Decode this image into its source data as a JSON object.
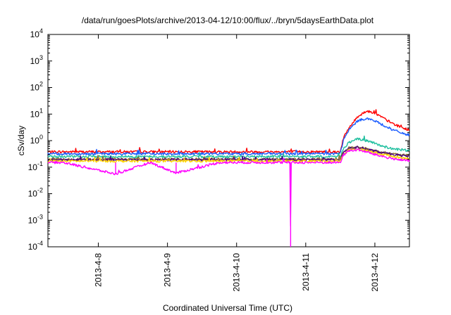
{
  "chart_data": {
    "type": "line",
    "title": "/data/run/goesPlots/archive/2013-04-12/10:00/flux/../bryn/5daysEarthData.plot",
    "xlabel": "Coordinated Universal Time (UTC)",
    "ylabel": "cSv/day",
    "yscale": "log",
    "ylim": [
      0.0001,
      10000
    ],
    "xlim": [
      "2013-04-07 06:30",
      "2013-04-12 12:00"
    ],
    "x_ticks": [
      "2013-4-8",
      "2013-4-9",
      "2013-4-10",
      "2013-4-11",
      "2013-4-12"
    ],
    "y_ticks": [
      {
        "value": 0.0001,
        "base": "10",
        "exp": "-4"
      },
      {
        "value": 0.001,
        "base": "10",
        "exp": "-3"
      },
      {
        "value": 0.01,
        "base": "10",
        "exp": "-2"
      },
      {
        "value": 0.1,
        "base": "10",
        "exp": "-1"
      },
      {
        "value": 1,
        "base": "10",
        "exp": "0"
      },
      {
        "value": 10,
        "base": "10",
        "exp": "1"
      },
      {
        "value": 100,
        "base": "10",
        "exp": "2"
      },
      {
        "value": 1000,
        "base": "10",
        "exp": "3"
      },
      {
        "value": 10000,
        "base": "10",
        "exp": "4"
      }
    ],
    "grid": false,
    "legend": "none",
    "series": [
      {
        "color": "#ff0000",
        "x": [
          "2013-04-07 06:30",
          "2013-04-08 12:00",
          "2013-04-09 12:00",
          "2013-04-10 12:00",
          "2013-04-11 06:00",
          "2013-04-11 12:00",
          "2013-04-11 13:00",
          "2013-04-11 15:00",
          "2013-04-11 18:00",
          "2013-04-11 21:00",
          "2013-04-12 00:00",
          "2013-04-12 03:00",
          "2013-04-12 06:00",
          "2013-04-12 09:00",
          "2013-04-12 12:00"
        ],
        "y": [
          0.38,
          0.38,
          0.38,
          0.38,
          0.38,
          0.38,
          1.2,
          3,
          8,
          13,
          11,
          7,
          4.5,
          3.2,
          2.5
        ]
      },
      {
        "color": "#1a5cff",
        "x": [
          "2013-04-07 06:30",
          "2013-04-08 12:00",
          "2013-04-09 12:00",
          "2013-04-10 12:00",
          "2013-04-11 06:00",
          "2013-04-11 12:00",
          "2013-04-11 13:00",
          "2013-04-11 15:00",
          "2013-04-11 18:00",
          "2013-04-11 21:00",
          "2013-04-12 00:00",
          "2013-04-12 03:00",
          "2013-04-12 06:00",
          "2013-04-12 09:00",
          "2013-04-12 12:00"
        ],
        "y": [
          0.32,
          0.32,
          0.32,
          0.32,
          0.32,
          0.32,
          1,
          2.5,
          5.5,
          7,
          5.5,
          3.8,
          2.6,
          2,
          1.6
        ]
      },
      {
        "color": "#1fbf9f",
        "x": [
          "2013-04-07 06:30",
          "2013-04-08 12:00",
          "2013-04-09 12:00",
          "2013-04-10 12:00",
          "2013-04-11 06:00",
          "2013-04-11 12:00",
          "2013-04-11 13:00",
          "2013-04-11 15:00",
          "2013-04-11 18:00",
          "2013-04-11 21:00",
          "2013-04-12 00:00",
          "2013-04-12 03:00",
          "2013-04-12 06:00",
          "2013-04-12 09:00",
          "2013-04-12 12:00"
        ],
        "y": [
          0.25,
          0.25,
          0.25,
          0.25,
          0.25,
          0.25,
          0.5,
          0.85,
          1.15,
          1,
          0.8,
          0.6,
          0.5,
          0.45,
          0.42
        ]
      },
      {
        "color": "#8b6e2e",
        "x": [
          "2013-04-07 06:30",
          "2013-04-08 12:00",
          "2013-04-09 12:00",
          "2013-04-10 12:00",
          "2013-04-11 06:00",
          "2013-04-11 12:00",
          "2013-04-11 13:00",
          "2013-04-11 15:00",
          "2013-04-11 18:00",
          "2013-04-11 21:00",
          "2013-04-12 00:00",
          "2013-04-12 03:00",
          "2013-04-12 06:00",
          "2013-04-12 09:00",
          "2013-04-12 12:00"
        ],
        "y": [
          0.2,
          0.2,
          0.2,
          0.2,
          0.2,
          0.2,
          0.38,
          0.55,
          0.58,
          0.5,
          0.42,
          0.36,
          0.32,
          0.29,
          0.27
        ]
      },
      {
        "color": "#4b0082",
        "x": [
          "2013-04-07 06:30",
          "2013-04-08 12:00",
          "2013-04-09 12:00",
          "2013-04-10 12:00",
          "2013-04-11 06:00",
          "2013-04-11 12:00",
          "2013-04-11 13:00",
          "2013-04-11 15:00",
          "2013-04-11 18:00",
          "2013-04-11 21:00",
          "2013-04-12 00:00",
          "2013-04-12 03:00",
          "2013-04-12 06:00",
          "2013-04-12 09:00",
          "2013-04-12 12:00"
        ],
        "y": [
          0.19,
          0.19,
          0.19,
          0.19,
          0.19,
          0.19,
          0.36,
          0.52,
          0.55,
          0.48,
          0.4,
          0.34,
          0.3,
          0.27,
          0.25
        ]
      },
      {
        "color": "#ffd400",
        "x": [
          "2013-04-07 06:30",
          "2013-04-08 12:00",
          "2013-04-09 12:00",
          "2013-04-10 12:00",
          "2013-04-11 06:00",
          "2013-04-11 12:00",
          "2013-04-11 13:00",
          "2013-04-11 15:00",
          "2013-04-11 18:00",
          "2013-04-11 21:00",
          "2013-04-12 00:00",
          "2013-04-12 03:00",
          "2013-04-12 06:00",
          "2013-04-12 09:00",
          "2013-04-12 12:00"
        ],
        "y": [
          0.17,
          0.17,
          0.17,
          0.17,
          0.17,
          0.17,
          0.3,
          0.45,
          0.48,
          0.42,
          0.35,
          0.3,
          0.26,
          0.23,
          0.21
        ]
      },
      {
        "color": "#ff00ff",
        "x": [
          "2013-04-07 06:30",
          "2013-04-07 12:00",
          "2013-04-08 06:00",
          "2013-04-08 18:00",
          "2013-04-09 03:00",
          "2013-04-09 18:00",
          "2013-04-10 12:00",
          "2013-04-10 15:00",
          "2013-04-10 18:40",
          "2013-04-10 18:45",
          "2013-04-10 18:50",
          "2013-04-11 06:00",
          "2013-04-11 12:00",
          "2013-04-11 13:00",
          "2013-04-11 15:00",
          "2013-04-11 18:00",
          "2013-04-11 21:00",
          "2013-04-12 00:00",
          "2013-04-12 03:00",
          "2013-04-12 06:00",
          "2013-04-12 09:00",
          "2013-04-12 12:00"
        ],
        "y": [
          0.15,
          0.15,
          0.055,
          0.15,
          0.06,
          0.15,
          0.15,
          0.15,
          0.15,
          0.0001,
          0.15,
          0.15,
          0.15,
          0.28,
          0.42,
          0.45,
          0.38,
          0.3,
          0.25,
          0.21,
          0.19,
          0.17
        ]
      }
    ]
  }
}
